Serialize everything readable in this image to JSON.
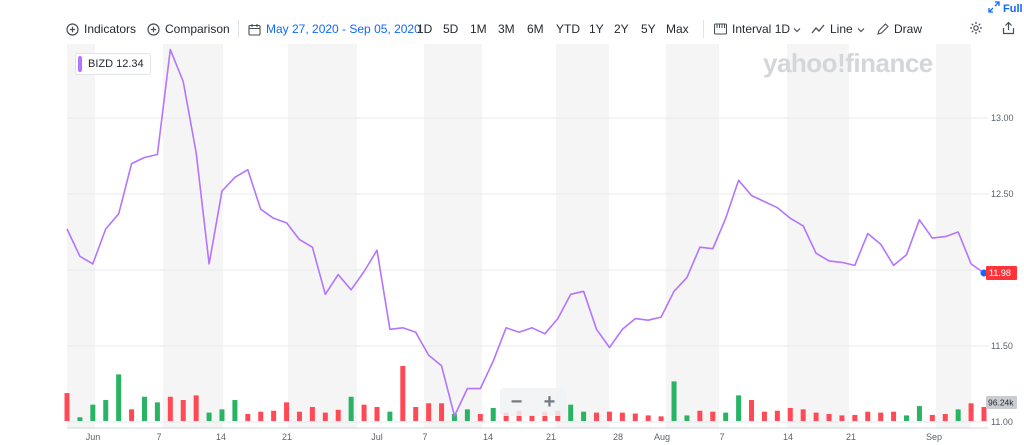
{
  "toolbar": {
    "indicators_label": "Indicators",
    "comparison_label": "Comparison",
    "date_range_label": "May 27, 2020 - Sep 05, 2020",
    "ranges": [
      "1D",
      "5D",
      "1M",
      "3M",
      "6M",
      "YTD",
      "1Y",
      "2Y",
      "5Y",
      "Max"
    ],
    "interval_label": "Interval",
    "interval_value": "1D",
    "chart_type_label": "Line",
    "draw_label": "Draw",
    "full_label": "Full"
  },
  "legend": {
    "symbol": "BIZD",
    "value": "12.34"
  },
  "watermark": "yahoo!finance",
  "colors": {
    "line": "#b474ff",
    "up": "#28b463",
    "down": "#ff4a55",
    "weekend_band": "#f5f5f5",
    "accent": "#0f69ff"
  },
  "chart_data": {
    "type": "line",
    "symbol": "BIZD",
    "x_ticks": [
      "Jun",
      "7",
      "14",
      "21",
      "Jul",
      "7",
      "14",
      "21",
      "28",
      "Aug",
      "7",
      "14",
      "21",
      "Sep"
    ],
    "y_ticks": [
      "11.00",
      "11.50",
      "12.00",
      "12.50",
      "13.00"
    ],
    "ylim": [
      11.0,
      13.5
    ],
    "last_price_label": "11.98",
    "volume_label": "96.24k",
    "close": [
      12.27,
      12.09,
      12.04,
      12.27,
      12.37,
      12.7,
      12.74,
      12.76,
      13.45,
      13.24,
      12.77,
      12.04,
      12.52,
      12.61,
      12.66,
      12.4,
      12.34,
      12.31,
      12.2,
      12.15,
      11.84,
      11.97,
      11.87,
      11.99,
      12.13,
      11.61,
      11.62,
      11.59,
      11.44,
      11.37,
      11.04,
      11.22,
      11.22,
      11.4,
      11.62,
      11.59,
      11.62,
      11.58,
      11.68,
      11.84,
      11.86,
      11.61,
      11.49,
      11.61,
      11.68,
      11.67,
      11.69,
      11.86,
      11.95,
      12.15,
      12.14,
      12.34,
      12.59,
      12.49,
      12.45,
      12.41,
      12.34,
      12.29,
      12.11,
      12.06,
      12.05,
      12.03,
      12.24,
      12.17,
      12.03,
      12.1,
      12.33,
      12.21,
      12.22,
      12.25,
      12.04,
      11.98
    ],
    "volume_rel": [
      0.6,
      0.08,
      0.35,
      0.45,
      1.0,
      0.25,
      0.52,
      0.4,
      0.52,
      0.45,
      0.55,
      0.18,
      0.25,
      0.45,
      0.15,
      0.2,
      0.22,
      0.4,
      0.2,
      0.3,
      0.18,
      0.24,
      0.52,
      0.35,
      0.3,
      0.2,
      1.18,
      0.3,
      0.38,
      0.38,
      0.15,
      0.25,
      0.15,
      0.28,
      0.18,
      0.22,
      0.12,
      0.2,
      0.22,
      0.35,
      0.2,
      0.18,
      0.2,
      0.18,
      0.16,
      0.12,
      0.1,
      0.85,
      0.12,
      0.22,
      0.2,
      0.18,
      0.55,
      0.45,
      0.2,
      0.22,
      0.28,
      0.25,
      0.18,
      0.15,
      0.12,
      0.13,
      0.2,
      0.18,
      0.2,
      0.12,
      0.32,
      0.13,
      0.15,
      0.25,
      0.38,
      0.3
    ],
    "volume_up": [
      false,
      true,
      true,
      true,
      true,
      false,
      true,
      true,
      false,
      false,
      false,
      true,
      true,
      true,
      false,
      false,
      false,
      false,
      false,
      false,
      false,
      false,
      true,
      false,
      false,
      true,
      false,
      false,
      false,
      false,
      true,
      true,
      false,
      true,
      false,
      false,
      false,
      false,
      false,
      true,
      true,
      false,
      false,
      false,
      false,
      false,
      false,
      true,
      true,
      false,
      false,
      true,
      true,
      false,
      false,
      false,
      false,
      false,
      false,
      false,
      false,
      false,
      false,
      false,
      false,
      true,
      true,
      false,
      false,
      true,
      false,
      false
    ]
  }
}
